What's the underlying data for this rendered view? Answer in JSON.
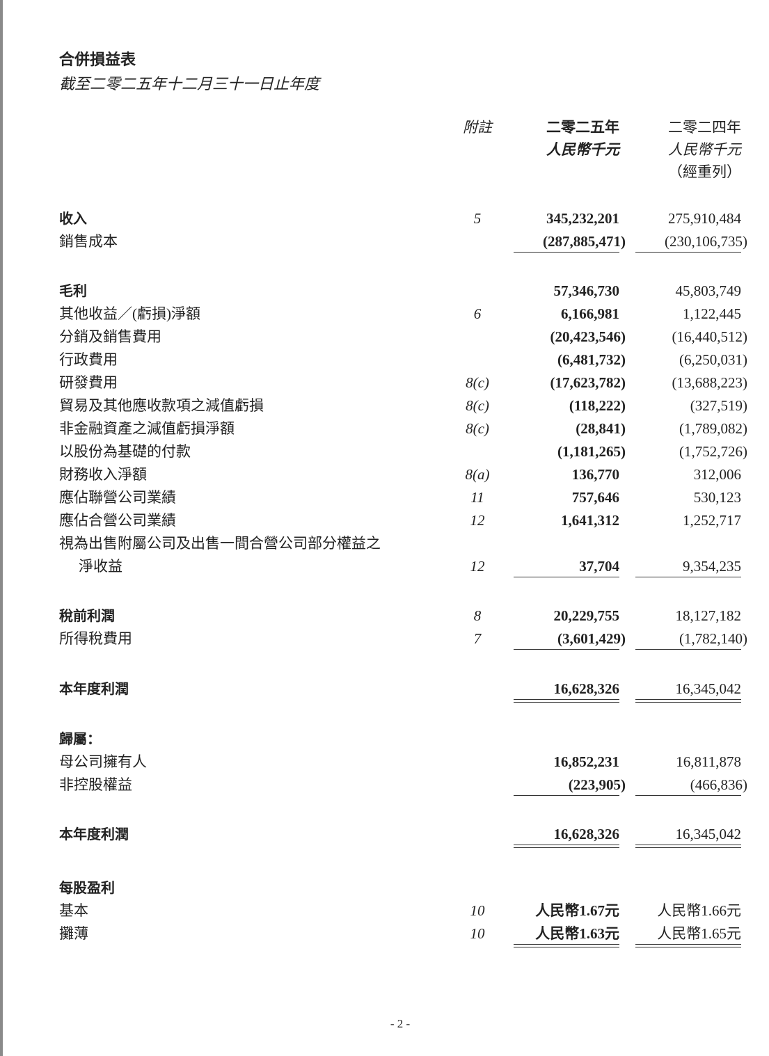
{
  "title": "合併損益表",
  "subtitle": "截至二零二五年十二月三十一日止年度",
  "header": {
    "note": "附註",
    "col1_year": "二零二五年",
    "col1_unit": "人民幣千元",
    "col2_year": "二零二四年",
    "col2_unit": "人民幣千元",
    "col2_restated": "（經重列）"
  },
  "rows": [
    {
      "label": "收入",
      "bold": true,
      "note": "5",
      "y2025": "345,232,201",
      "y2024": "275,910,484"
    },
    {
      "label": "銷售成本",
      "note": "",
      "y2025": "(287,885,471)",
      "y2024": "(230,106,735)",
      "rule": "single"
    },
    {
      "gap": "gap"
    },
    {
      "label": "毛利",
      "bold": true,
      "note": "",
      "y2025": "57,346,730",
      "y2024": "45,803,749"
    },
    {
      "label": "其他收益／(虧損)淨額",
      "note": "6",
      "y2025": "6,166,981",
      "y2024": "1,122,445"
    },
    {
      "label": "分銷及銷售費用",
      "note": "",
      "y2025": "(20,423,546)",
      "y2024": "(16,440,512)"
    },
    {
      "label": "行政費用",
      "note": "",
      "y2025": "(6,481,732)",
      "y2024": "(6,250,031)"
    },
    {
      "label": "研發費用",
      "note": "8(c)",
      "y2025": "(17,623,782)",
      "y2024": "(13,688,223)"
    },
    {
      "label": "貿易及其他應收款項之減值虧損",
      "note": "8(c)",
      "y2025": "(118,222)",
      "y2024": "(327,519)"
    },
    {
      "label": "非金融資產之減值虧損淨額",
      "note": "8(c)",
      "y2025": "(28,841)",
      "y2024": "(1,789,082)"
    },
    {
      "label": "以股份為基礎的付款",
      "note": "",
      "y2025": "(1,181,265)",
      "y2024": "(1,752,726)"
    },
    {
      "label": "財務收入淨額",
      "note": "8(a)",
      "y2025": "136,770",
      "y2024": "312,006"
    },
    {
      "label": "應佔聯營公司業績",
      "note": "11",
      "y2025": "757,646",
      "y2024": "530,123"
    },
    {
      "label": "應佔合營公司業績",
      "note": "12",
      "y2025": "1,641,312",
      "y2024": "1,252,717"
    },
    {
      "label": "視為出售附屬公司及出售一間合營公司部分權益之",
      "note": "",
      "y2025": "",
      "y2024": ""
    },
    {
      "label": "淨收益",
      "indent": true,
      "note": "12",
      "y2025": "37,704",
      "y2024": "9,354,235",
      "rule": "single"
    },
    {
      "gap": "gap"
    },
    {
      "label": "稅前利潤",
      "bold": true,
      "note": "8",
      "y2025": "20,229,755",
      "y2024": "18,127,182"
    },
    {
      "label": "所得稅費用",
      "note": "7",
      "y2025": "(3,601,429)",
      "y2024": "(1,782,140)",
      "rule": "single"
    },
    {
      "gap": "gap2"
    },
    {
      "label": "本年度利潤",
      "bold": true,
      "note": "",
      "y2025": "16,628,326",
      "y2024": "16,345,042",
      "rule": "double"
    },
    {
      "gap": "gap2"
    },
    {
      "label": "歸屬：",
      "bold": true,
      "note": "",
      "y2025": "",
      "y2024": ""
    },
    {
      "label": "母公司擁有人",
      "note": "",
      "y2025": "16,852,231",
      "y2024": "16,811,878"
    },
    {
      "label": "非控股權益",
      "note": "",
      "y2025": "(223,905)",
      "y2024": "(466,836)",
      "rule": "single"
    },
    {
      "gap": "gap"
    },
    {
      "label": "本年度利潤",
      "bold": true,
      "note": "",
      "y2025": "16,628,326",
      "y2024": "16,345,042",
      "rule": "double"
    },
    {
      "gap": "gap3"
    },
    {
      "label": "每股盈利",
      "bold": true,
      "note": "",
      "y2025": "",
      "y2024": ""
    },
    {
      "label": "基本",
      "note": "10",
      "y2025": "人民幣1.67元",
      "y2024": "人民幣1.66元"
    },
    {
      "label": "攤薄",
      "note": "10",
      "y2025": "人民幣1.63元",
      "y2024": "人民幣1.65元",
      "rule": "double"
    }
  ],
  "page_number": "- 2 -"
}
